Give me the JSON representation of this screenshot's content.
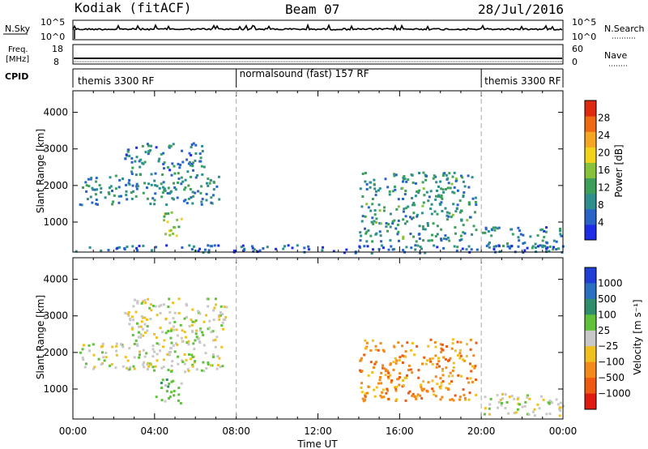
{
  "header": {
    "station": "Kodiak (fitACF)",
    "beam": "Beam 07",
    "date": "28/Jul/2016"
  },
  "top_panels": {
    "nsky_label": "N.Sky",
    "nsky_ticks": [
      "10^5",
      "10^0"
    ],
    "nsearch_label": "N.Search",
    "nsearch_ticks": [
      "10^5",
      "10^0"
    ],
    "freq_label_line1": "Freq.",
    "freq_label_line2": "[MHz]",
    "freq_ticks": [
      "18",
      "8"
    ],
    "nave_label": "Nave",
    "nave_ticks": [
      "60",
      "0"
    ],
    "cpid_label": "CPID",
    "cpid_segments": [
      {
        "name": "themis 3300 RF",
        "start": 0,
        "end": 8
      },
      {
        "name": "normalsound (fast) 157 RF",
        "start": 8,
        "end": 20
      },
      {
        "name": "themis 3300 RF",
        "start": 20,
        "end": 24
      }
    ]
  },
  "chart_data": [
    {
      "type": "heatmap",
      "name": "power",
      "ylabel": "Slant Range [km]",
      "ylim": [
        180,
        4590
      ],
      "yticks": [
        1000,
        2000,
        3000,
        4000
      ],
      "xlim": [
        0,
        24
      ],
      "colorbar": {
        "label": "Power [dB]",
        "ticks": [
          4,
          8,
          12,
          16,
          20,
          24,
          28
        ],
        "range": [
          0,
          32
        ],
        "colors": [
          "#1e2ee6",
          "#2a64c8",
          "#2f8f8c",
          "#3da05a",
          "#88c23b",
          "#f2d21b",
          "#f5a623",
          "#ef6a12",
          "#e02a0f"
        ]
      },
      "echo_regions": [
        {
          "t0": 0.3,
          "t1": 7.3,
          "r0": 1500,
          "r1": 2300,
          "power": 9
        },
        {
          "t0": 2.5,
          "t1": 6.5,
          "r0": 2300,
          "r1": 3200,
          "power": 8
        },
        {
          "t0": 4.3,
          "t1": 5.3,
          "r0": 600,
          "r1": 1300,
          "power": 16
        },
        {
          "t0": 14.0,
          "t1": 19.7,
          "r0": 500,
          "r1": 2400,
          "power": 10
        },
        {
          "t0": 20.0,
          "t1": 24.0,
          "r0": 300,
          "r1": 900,
          "power": 8
        },
        {
          "t0": 0.0,
          "t1": 24.0,
          "r0": 180,
          "r1": 400,
          "power": 6
        }
      ]
    },
    {
      "type": "heatmap",
      "name": "velocity",
      "ylabel": "Slant Range [km]",
      "ylim": [
        180,
        4590
      ],
      "yticks": [
        1000,
        2000,
        3000,
        4000
      ],
      "xlim": [
        0,
        24
      ],
      "xticks": [
        "00:00",
        "04:00",
        "08:00",
        "12:00",
        "16:00",
        "20:00",
        "00:00"
      ],
      "xlabel": "Time UT",
      "colorbar": {
        "label": "Velocity [m s⁻¹]",
        "ticks": [
          "1000",
          "500",
          "100",
          "25",
          "−25",
          "−100",
          "−500",
          "−1000"
        ],
        "colors": [
          "#1f3fd6",
          "#2a6fc0",
          "#2e8f6a",
          "#5fc23a",
          "#c8c8c8",
          "#f0c020",
          "#f58a1a",
          "#ee5a12",
          "#e01a0f"
        ]
      },
      "echo_regions": [
        {
          "t0": 0.3,
          "t1": 7.3,
          "r0": 1500,
          "r1": 2300,
          "velocity": 0
        },
        {
          "t0": 2.5,
          "t1": 7.5,
          "r0": 2300,
          "r1": 3500,
          "velocity": 0
        },
        {
          "t0": 4.0,
          "t1": 5.3,
          "r0": 600,
          "r1": 1300,
          "velocity": 150
        },
        {
          "t0": 14.0,
          "t1": 19.7,
          "r0": 700,
          "r1": 2400,
          "velocity": -300
        },
        {
          "t0": 20.0,
          "t1": 24.0,
          "r0": 300,
          "r1": 900,
          "velocity": 0
        }
      ]
    }
  ],
  "colors": {
    "accent_red": "#e02a0f",
    "accent_blue": "#1e2ee6",
    "ground_gray": "#c8c8c8"
  }
}
